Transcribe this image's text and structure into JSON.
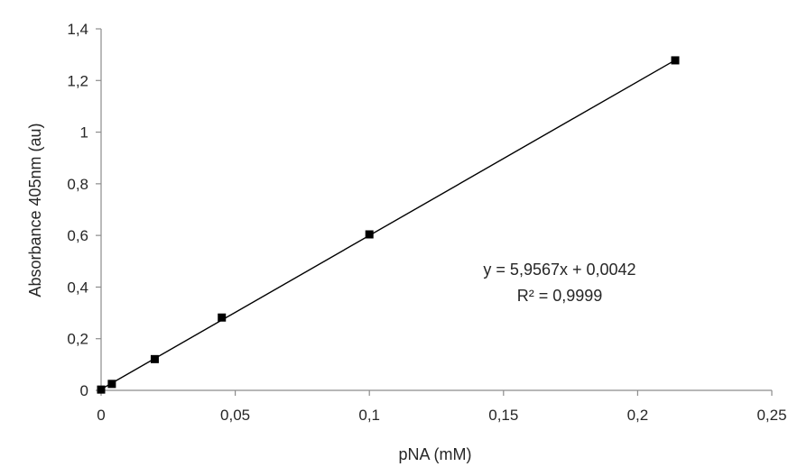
{
  "chart_data": {
    "type": "scatter",
    "title": "",
    "xlabel": "pNA (mM)",
    "ylabel": "Absorbance 405nm (au)",
    "xlim": [
      0,
      0.25
    ],
    "ylim": [
      0,
      1.4
    ],
    "x_ticks": [
      "0",
      "0,05",
      "0,1",
      "0,15",
      "0,2",
      "0,25"
    ],
    "y_ticks": [
      "0",
      "0,2",
      "0,4",
      "0,6",
      "0,8",
      "1",
      "1,2",
      "1,4"
    ],
    "x_tick_values": [
      0,
      0.05,
      0.1,
      0.15,
      0.2,
      0.25
    ],
    "y_tick_values": [
      0,
      0.2,
      0.4,
      0.6,
      0.8,
      1.0,
      1.2,
      1.4
    ],
    "grid": false,
    "marker": "square",
    "marker_color": "#000000",
    "series": [
      {
        "x": [
          0,
          0.004,
          0.02,
          0.045,
          0.1,
          0.214
        ],
        "y": [
          0.003,
          0.025,
          0.121,
          0.282,
          0.604,
          1.278
        ]
      }
    ],
    "trendline": {
      "type": "linear",
      "slope": 5.9567,
      "intercept": 0.0042,
      "x_range": [
        0,
        0.214
      ],
      "equation": "y = 5,9567x + 0,0042",
      "r_squared": "R² = 0,9999"
    }
  }
}
